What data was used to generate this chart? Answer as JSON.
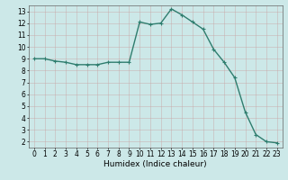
{
  "x": [
    0,
    1,
    2,
    3,
    4,
    5,
    6,
    7,
    8,
    9,
    10,
    11,
    12,
    13,
    14,
    15,
    16,
    17,
    18,
    19,
    20,
    21,
    22,
    23
  ],
  "y": [
    9.0,
    9.0,
    8.8,
    8.7,
    8.5,
    8.5,
    8.5,
    8.7,
    8.7,
    8.7,
    12.1,
    11.9,
    12.0,
    13.2,
    12.7,
    12.1,
    11.5,
    9.8,
    8.7,
    7.4,
    4.5,
    2.6,
    2.0,
    1.9
  ],
  "line_color": "#2e7d6e",
  "marker": "+",
  "marker_size": 3,
  "linewidth": 1.0,
  "bg_color": "#cce8e8",
  "grid_color_major": "#b8d4d4",
  "grid_color_minor": "#d0e6e6",
  "xlabel": "Humidex (Indice chaleur)",
  "xlabel_fontsize": 6.5,
  "tick_fontsize": 5.5,
  "xlim": [
    -0.5,
    23.5
  ],
  "ylim": [
    1.5,
    13.5
  ],
  "yticks": [
    2,
    3,
    4,
    5,
    6,
    7,
    8,
    9,
    10,
    11,
    12,
    13
  ],
  "xticks": [
    0,
    1,
    2,
    3,
    4,
    5,
    6,
    7,
    8,
    9,
    10,
    11,
    12,
    13,
    14,
    15,
    16,
    17,
    18,
    19,
    20,
    21,
    22,
    23
  ]
}
